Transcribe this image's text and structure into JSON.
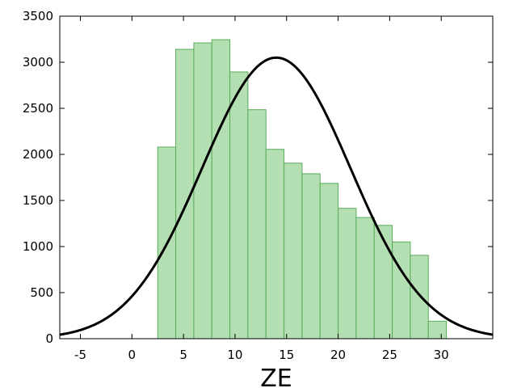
{
  "chart_data": {
    "type": "bar",
    "xlabel": "ZE",
    "ylabel": "",
    "title": "",
    "xlim": [
      -7,
      35
    ],
    "ylim": [
      0,
      3500
    ],
    "x_ticks": [
      -5,
      0,
      5,
      10,
      15,
      20,
      25,
      30
    ],
    "y_ticks": [
      0,
      500,
      1000,
      1500,
      2000,
      2500,
      3000,
      3500
    ],
    "grid": false,
    "legend": "none",
    "bin_width": 1.75,
    "bins": [
      {
        "start": 2.5,
        "value": 2080
      },
      {
        "start": 4.25,
        "value": 3140
      },
      {
        "start": 6.0,
        "value": 3210
      },
      {
        "start": 7.75,
        "value": 3245
      },
      {
        "start": 9.5,
        "value": 2895
      },
      {
        "start": 11.25,
        "value": 2485
      },
      {
        "start": 13.0,
        "value": 2055
      },
      {
        "start": 14.75,
        "value": 1905
      },
      {
        "start": 16.5,
        "value": 1790
      },
      {
        "start": 18.25,
        "value": 1685
      },
      {
        "start": 20.0,
        "value": 1415
      },
      {
        "start": 21.75,
        "value": 1315
      },
      {
        "start": 23.5,
        "value": 1230
      },
      {
        "start": 25.25,
        "value": 1050
      },
      {
        "start": 27.0,
        "value": 905
      },
      {
        "start": 28.75,
        "value": 190
      }
    ],
    "curve": {
      "type": "gaussian",
      "mean": 14,
      "peak": 3050,
      "sigma": 7.2
    },
    "colors": {
      "bar_fill": "#b3dfb3",
      "bar_stroke": "#5aac5a",
      "curve": "#000000",
      "axes": "#000000"
    }
  }
}
